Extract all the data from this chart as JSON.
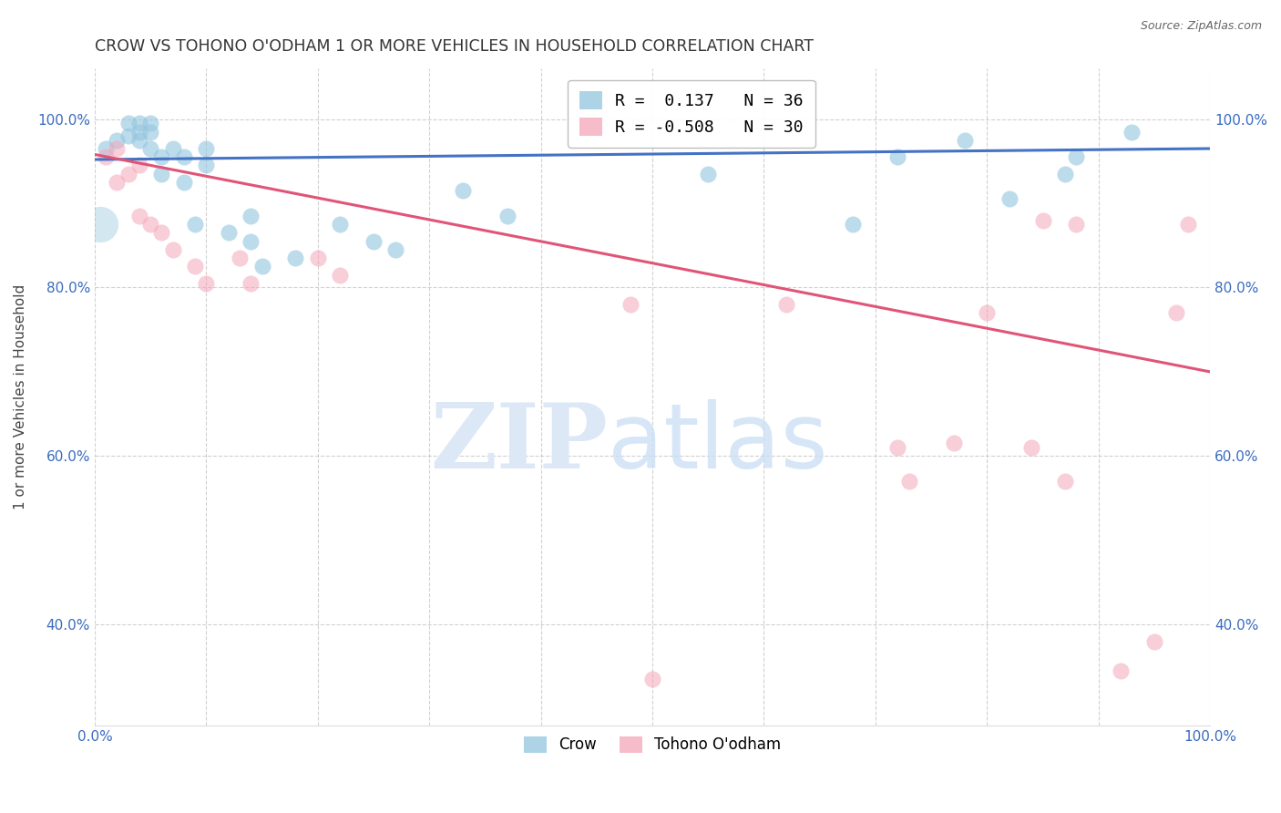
{
  "title": "CROW VS TOHONO O'ODHAM 1 OR MORE VEHICLES IN HOUSEHOLD CORRELATION CHART",
  "source": "Source: ZipAtlas.com",
  "ylabel": "1 or more Vehicles in Household",
  "xlim": [
    0.0,
    1.0
  ],
  "ylim": [
    0.28,
    1.06
  ],
  "xtick_positions": [
    0.0,
    0.1,
    0.2,
    0.3,
    0.4,
    0.5,
    0.6,
    0.7,
    0.8,
    0.9,
    1.0
  ],
  "xticklabels": [
    "0.0%",
    "",
    "",
    "",
    "",
    "",
    "",
    "",
    "",
    "",
    "100.0%"
  ],
  "ytick_positions": [
    0.4,
    0.6,
    0.8,
    1.0
  ],
  "yticklabels": [
    "40.0%",
    "60.0%",
    "80.0%",
    "100.0%"
  ],
  "crow_color": "#92c5de",
  "tohono_color": "#f4a6b8",
  "crow_line_color": "#4472c4",
  "tohono_line_color": "#e05577",
  "grid_color": "#cccccc",
  "background_color": "#ffffff",
  "crow_x": [
    0.01,
    0.02,
    0.03,
    0.03,
    0.04,
    0.04,
    0.04,
    0.05,
    0.05,
    0.05,
    0.06,
    0.06,
    0.07,
    0.08,
    0.08,
    0.09,
    0.1,
    0.1,
    0.12,
    0.14,
    0.14,
    0.15,
    0.18,
    0.22,
    0.25,
    0.27,
    0.33,
    0.37,
    0.55,
    0.68,
    0.72,
    0.78,
    0.82,
    0.87,
    0.88,
    0.93
  ],
  "crow_y": [
    0.965,
    0.975,
    0.98,
    0.995,
    0.975,
    0.985,
    0.995,
    0.965,
    0.985,
    0.995,
    0.935,
    0.955,
    0.965,
    0.925,
    0.955,
    0.875,
    0.945,
    0.965,
    0.865,
    0.855,
    0.885,
    0.825,
    0.835,
    0.875,
    0.855,
    0.845,
    0.915,
    0.885,
    0.935,
    0.875,
    0.955,
    0.975,
    0.905,
    0.935,
    0.955,
    0.985
  ],
  "crow_big_x": [
    0.005
  ],
  "crow_big_y": [
    0.875
  ],
  "crow_big_size": 800,
  "tohono_x": [
    0.01,
    0.02,
    0.02,
    0.03,
    0.04,
    0.04,
    0.05,
    0.06,
    0.07,
    0.09,
    0.1,
    0.13,
    0.14,
    0.2,
    0.22,
    0.48,
    0.62,
    0.72,
    0.73,
    0.77,
    0.8,
    0.84,
    0.87,
    0.88,
    0.92,
    0.95,
    0.97,
    0.98,
    0.5,
    0.85
  ],
  "tohono_y": [
    0.955,
    0.925,
    0.965,
    0.935,
    0.885,
    0.945,
    0.875,
    0.865,
    0.845,
    0.825,
    0.805,
    0.835,
    0.805,
    0.835,
    0.815,
    0.78,
    0.78,
    0.61,
    0.57,
    0.615,
    0.77,
    0.61,
    0.57,
    0.875,
    0.345,
    0.38,
    0.77,
    0.875,
    0.335,
    0.88
  ],
  "crow_trend": [
    0.952,
    0.965
  ],
  "tohono_trend": [
    0.958,
    0.7
  ],
  "legend_crow_label": "R =  0.137   N = 36",
  "legend_tohono_label": "R = -0.508   N = 30",
  "bottom_legend_crow": "Crow",
  "bottom_legend_tohono": "Tohono O'odham"
}
